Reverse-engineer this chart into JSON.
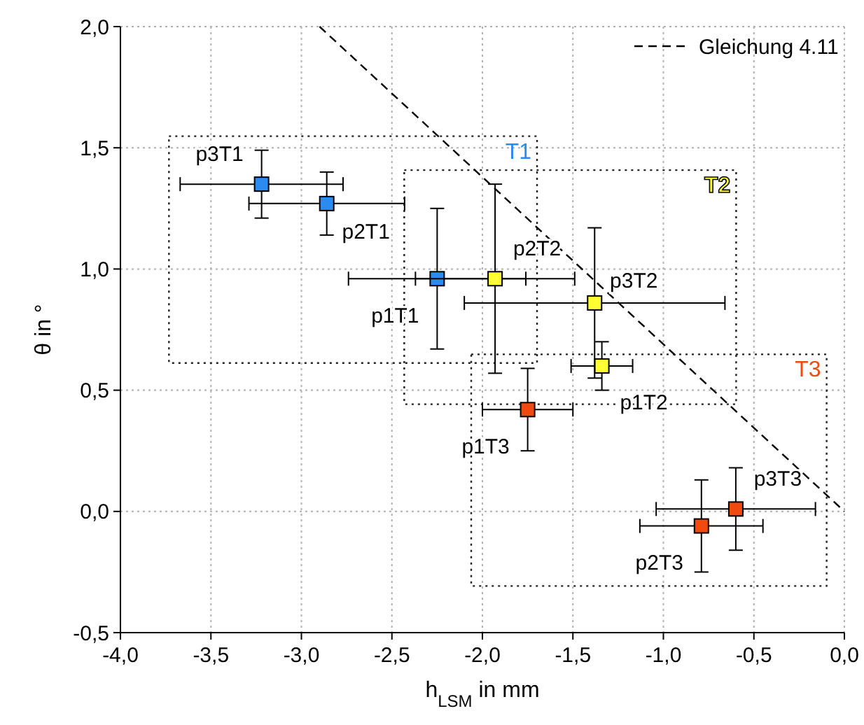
{
  "chart_data": {
    "type": "scatter",
    "xlabel": "h$_{LSM}$ in mm",
    "ylabel": "θ in °",
    "xlim": [
      -4,
      0
    ],
    "ylim": [
      -0.5,
      2
    ],
    "xticks": [
      {
        "value": -4,
        "label": "-4,0"
      },
      {
        "value": -3.5,
        "label": "-3,5"
      },
      {
        "value": -3,
        "label": "-3,0"
      },
      {
        "value": -2.5,
        "label": "-2,5"
      },
      {
        "value": -2,
        "label": "-2,0"
      },
      {
        "value": -1.5,
        "label": "-1,5"
      },
      {
        "value": -1,
        "label": "-1,0"
      },
      {
        "value": -0.5,
        "label": "-0,5"
      },
      {
        "value": 0,
        "label": "0,0"
      }
    ],
    "yticks": [
      {
        "value": -0.5,
        "label": "-0,5"
      },
      {
        "value": 0,
        "label": "0,0"
      },
      {
        "value": 0.5,
        "label": "0,5"
      },
      {
        "value": 1,
        "label": "1,0"
      },
      {
        "value": 1.5,
        "label": "1,5"
      },
      {
        "value": 2,
        "label": "2,0"
      }
    ],
    "grid": true,
    "legend": "top right",
    "marker": "square",
    "series": [
      {
        "name": "T1",
        "color": "#2a8cf0",
        "x": [
          -2.25,
          -2.86,
          -3.22
        ],
        "values": [
          0.96,
          1.27,
          1.35
        ],
        "xerrors": [
          0.49,
          0.43,
          0.45
        ],
        "errors": [
          0.29,
          0.13,
          0.14
        ]
      },
      {
        "name": "T2",
        "color": "#ffff33",
        "x": [
          -1.34,
          -1.93,
          -1.38
        ],
        "values": [
          0.6,
          0.96,
          0.86
        ],
        "xerrors": [
          0.17,
          0.44,
          0.72
        ],
        "errors": [
          0.1,
          0.39,
          0.31
        ]
      },
      {
        "name": "T3",
        "color": "#f04a10",
        "x": [
          -1.75,
          -0.79,
          -0.6
        ],
        "values": [
          0.42,
          -0.06,
          0.01
        ],
        "xerrors": [
          0.25,
          0.34,
          0.44
        ],
        "errors": [
          0.17,
          0.19,
          0.17
        ]
      },
      {
        "name": "Gleichung 4.11",
        "type": "line",
        "marker": "none",
        "line_style": "dashed",
        "color": "#000000",
        "x": [
          -2.9,
          0
        ],
        "values": [
          2.0,
          0.0
        ]
      }
    ],
    "annotations": [
      {
        "text": "p1T1",
        "x": -2.25,
        "y": 0.96
      },
      {
        "text": "p2T1",
        "x": -2.86,
        "y": 1.27
      },
      {
        "text": "p3T1",
        "x": -3.22,
        "y": 1.35
      },
      {
        "text": "p1T2",
        "x": -1.34,
        "y": 0.6
      },
      {
        "text": "p2T2",
        "x": -1.93,
        "y": 0.96
      },
      {
        "text": "p3T2",
        "x": -1.38,
        "y": 0.86
      },
      {
        "text": "p1T3",
        "x": -1.75,
        "y": 0.42
      },
      {
        "text": "p2T3",
        "x": -0.79,
        "y": -0.06
      },
      {
        "text": "p3T3",
        "x": -0.6,
        "y": 0.01
      }
    ]
  }
}
